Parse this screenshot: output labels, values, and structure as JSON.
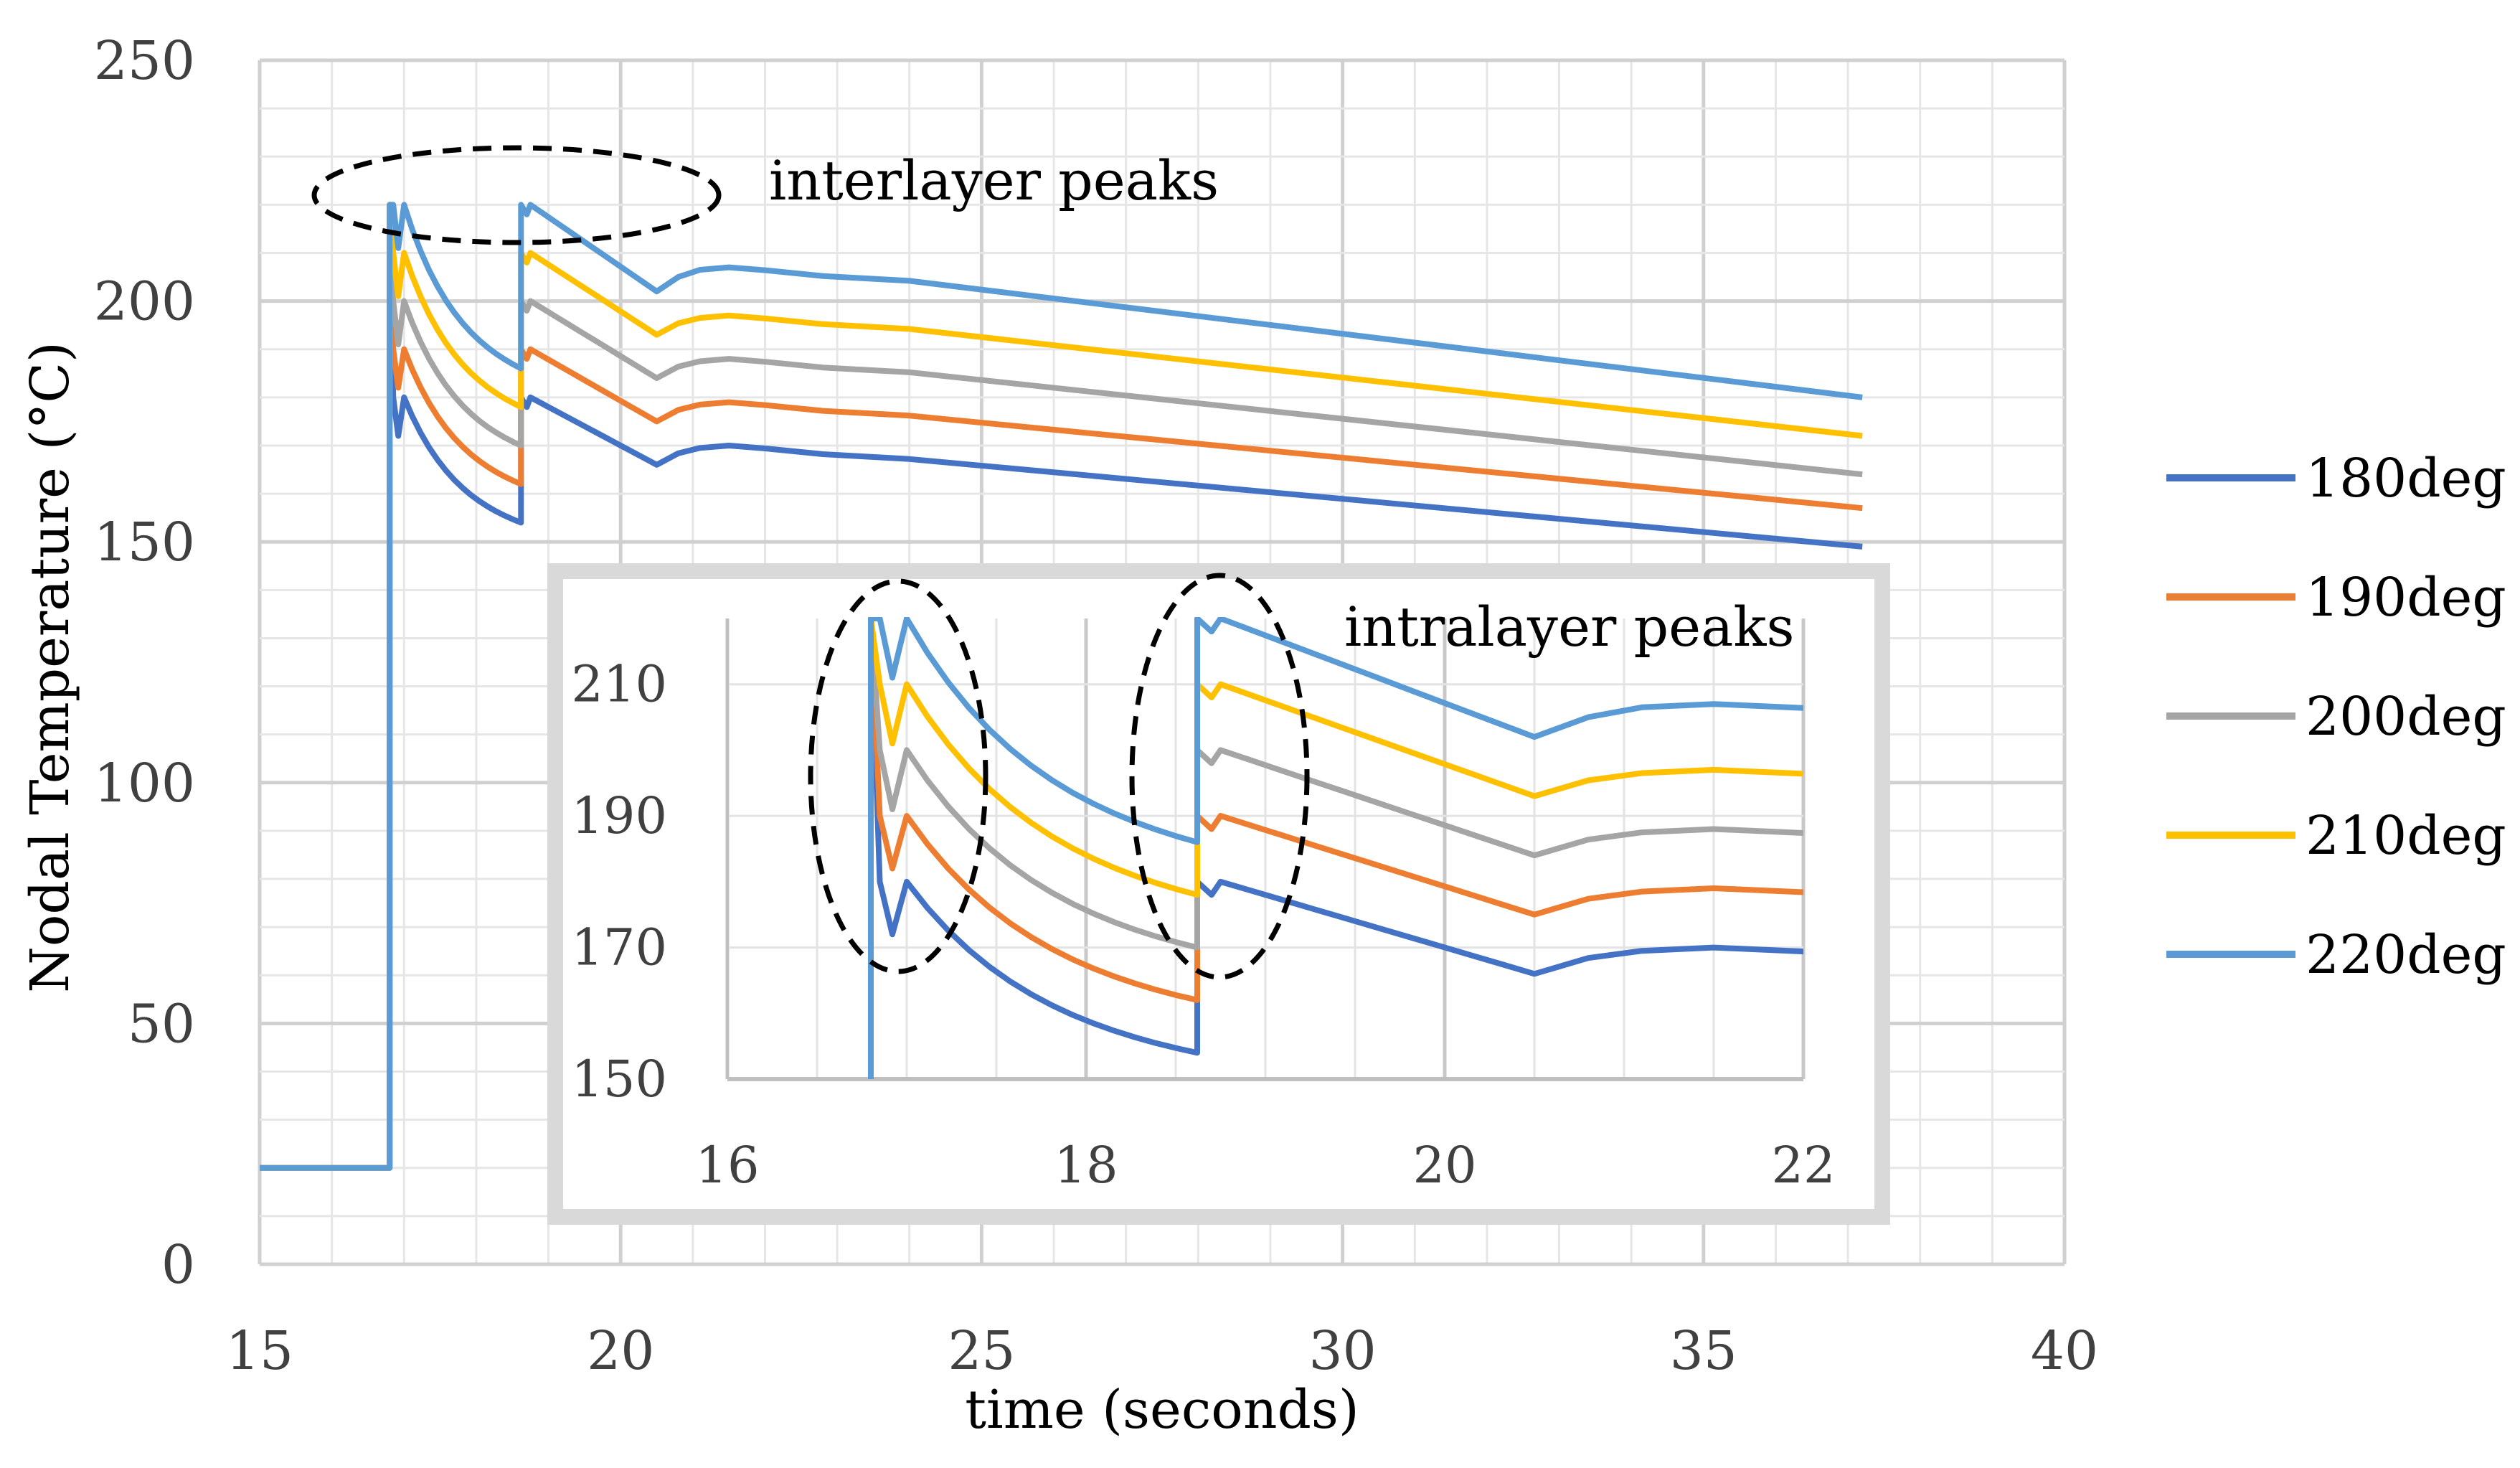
{
  "chart_data": {
    "type": "line",
    "title": "",
    "xlabel": "time (seconds)",
    "ylabel": "Nodal  Temperature (°C)",
    "xlim": [
      15,
      40
    ],
    "ylim": [
      0,
      250
    ],
    "x_ticks": [
      "15",
      "20",
      "25",
      "30",
      "35",
      "40"
    ],
    "y_ticks": [
      "0",
      "50",
      "100",
      "150",
      "200",
      "250"
    ],
    "x_tick_values": [
      15,
      20,
      25,
      30,
      35,
      40
    ],
    "y_tick_values": [
      0,
      50,
      100,
      150,
      200,
      250
    ],
    "grid": true,
    "legend_position": "right",
    "annotations": [
      "interlayer peaks",
      "intralayer peaks"
    ],
    "series": [
      {
        "name": "180deg",
        "color": "#4472C4",
        "peak": 180,
        "low1": 172,
        "end1": 154,
        "peak2": 180,
        "dip": 166,
        "hump": 170,
        "end": 149
      },
      {
        "name": "190deg",
        "color": "#ED7D31",
        "peak": 190,
        "low1": 182,
        "end1": 162,
        "peak2": 190,
        "dip": 175,
        "hump": 179,
        "end": 157
      },
      {
        "name": "200deg",
        "color": "#A5A5A5",
        "peak": 200,
        "low1": 191,
        "end1": 170,
        "peak2": 200,
        "dip": 184,
        "hump": 188,
        "end": 164
      },
      {
        "name": "210deg",
        "color": "#FFC000",
        "peak": 210,
        "low1": 201,
        "end1": 178,
        "peak2": 210,
        "dip": 193,
        "hump": 197,
        "end": 172
      },
      {
        "name": "220deg",
        "color": "#5B9BD5",
        "peak": 220,
        "low1": 211,
        "end1": 186,
        "peak2": 220,
        "dip": 202,
        "hump": 207,
        "end": 180
      }
    ],
    "initial_temperature": 20,
    "inset": {
      "xlim": [
        16,
        22
      ],
      "ylim": [
        150,
        220
      ],
      "x_ticks": [
        "16",
        "18",
        "20",
        "22"
      ],
      "y_ticks": [
        "150",
        "170",
        "190",
        "210"
      ],
      "x_tick_values": [
        16,
        18,
        20,
        22
      ],
      "y_tick_values": [
        150,
        170,
        190,
        210
      ]
    }
  }
}
